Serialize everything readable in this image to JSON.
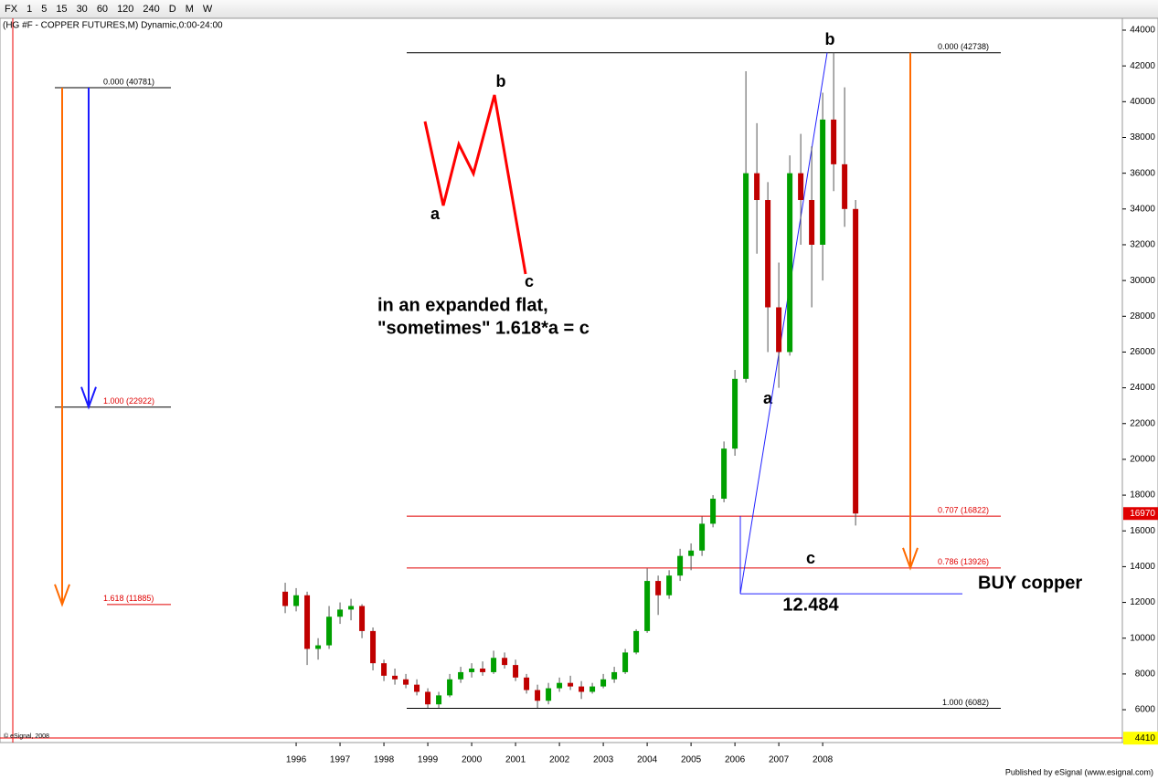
{
  "toolbar": [
    "FX",
    "1",
    "5",
    "15",
    "30",
    "60",
    "120",
    "240",
    "D",
    "M",
    "W"
  ],
  "chart_data": {
    "type": "candlestick",
    "title": "(HG #F - COPPER FUTURES,M) Dynamic,0:00-24:00",
    "copyright": "© eSignal, 2008",
    "footer": "Published by eSignal (www.esignal.com)",
    "note": [
      "in an expanded flat,",
      "\"sometimes\" 1.618*a = c"
    ],
    "buy_note": "BUY copper",
    "sketch_labels": [
      "a",
      "b",
      "c"
    ],
    "wave_labels": [
      "a",
      "b",
      "c"
    ],
    "xlim": [
      1989.25,
      2014.83
    ],
    "xticks": [
      1996,
      1997,
      1998,
      1999,
      2000,
      2001,
      2002,
      2003,
      2004,
      2005,
      2006,
      2007,
      2008
    ],
    "ylim": [
      4215,
      44562
    ],
    "yticks": [
      6000,
      8000,
      10000,
      12000,
      14000,
      16000,
      18000,
      20000,
      22000,
      24000,
      26000,
      28000,
      30000,
      32000,
      34000,
      36000,
      38000,
      40000,
      42000,
      44000
    ],
    "up_color": "#00a000",
    "down_color": "#c00000",
    "x": [
      1995.75,
      1996.0,
      1996.25,
      1996.5,
      1996.75,
      1997.0,
      1997.25,
      1997.5,
      1997.75,
      1998.0,
      1998.25,
      1998.5,
      1998.75,
      1999.0,
      1999.25,
      1999.5,
      1999.75,
      2000.0,
      2000.25,
      2000.5,
      2000.75,
      2001.0,
      2001.25,
      2001.5,
      2001.75,
      2002.0,
      2002.25,
      2002.5,
      2002.75,
      2003.0,
      2003.25,
      2003.5,
      2003.75,
      2004.0,
      2004.25,
      2004.5,
      2004.75,
      2005.0,
      2005.25,
      2005.5,
      2005.75,
      2006.0,
      2006.25,
      2006.5,
      2006.75,
      2007.0,
      2007.25,
      2007.5,
      2007.75,
      2008.0,
      2008.25,
      2008.5,
      2008.75
    ],
    "open": [
      12600,
      11800,
      12400,
      9400,
      9600,
      11200,
      11600,
      11800,
      10400,
      8600,
      7900,
      7700,
      7400,
      7000,
      6300,
      6800,
      7700,
      8100,
      8300,
      8100,
      8900,
      8500,
      7800,
      7100,
      6500,
      7200,
      7500,
      7300,
      7000,
      7300,
      7700,
      8100,
      9200,
      10400,
      13200,
      12400,
      13500,
      14600,
      14900,
      16400,
      17800,
      20600,
      24500,
      36000,
      34500,
      28500,
      26000,
      36000,
      34500,
      32000,
      39000,
      36500,
      34000
    ],
    "high": [
      13100,
      12800,
      12600,
      10000,
      11800,
      12000,
      12200,
      11900,
      10600,
      8800,
      8300,
      8000,
      7700,
      7200,
      7000,
      8000,
      8400,
      8600,
      8700,
      9300,
      9200,
      8800,
      8000,
      7400,
      7500,
      7800,
      7900,
      7600,
      7500,
      8000,
      8400,
      9400,
      10500,
      13900,
      13500,
      13800,
      15000,
      15300,
      16800,
      18000,
      21000,
      25000,
      41700,
      38800,
      35500,
      31000,
      37000,
      38200,
      37500,
      40500,
      42738,
      40800,
      34500
    ],
    "low": [
      11400,
      11500,
      8500,
      8800,
      9400,
      10800,
      11000,
      10000,
      8200,
      7600,
      7400,
      7200,
      6800,
      6100,
      6100,
      6700,
      7500,
      7800,
      7900,
      8000,
      8300,
      7600,
      6900,
      6100,
      6300,
      7000,
      7100,
      6600,
      6900,
      7200,
      7500,
      8000,
      9100,
      10300,
      11300,
      12200,
      13200,
      13800,
      14600,
      16200,
      17600,
      20200,
      24300,
      31500,
      26000,
      24000,
      25800,
      32000,
      28500,
      30000,
      35000,
      33000,
      16300
    ],
    "close": [
      11800,
      12400,
      9400,
      9600,
      11200,
      11600,
      11800,
      10400,
      8600,
      7900,
      7700,
      7400,
      7000,
      6300,
      6800,
      7700,
      8100,
      8300,
      8100,
      8900,
      8500,
      7800,
      7100,
      6500,
      7200,
      7500,
      7300,
      7000,
      7300,
      7700,
      8100,
      9200,
      10400,
      13200,
      12400,
      13500,
      14600,
      14900,
      16400,
      17800,
      20600,
      24500,
      36000,
      34500,
      28500,
      26000,
      36000,
      34500,
      32000,
      39000,
      36500,
      34000,
      16970
    ],
    "fib_levels": [
      {
        "label": "0.000 (40781)",
        "value": 40781,
        "color": "#000000",
        "label_color": "#000000"
      },
      {
        "label": "1.000 (22922)",
        "value": 22922,
        "color": "#000000",
        "label_color": "#e00000"
      },
      {
        "label": "1.618 (11885)",
        "value": 11885,
        "color": "#e00000",
        "label_color": "#e00000"
      },
      {
        "label": "0.000 (42738)",
        "value": 42738,
        "color": "#000000",
        "label_color": "#000000"
      },
      {
        "label": "0.707 (16822)",
        "value": 16822,
        "color": "#e00000",
        "label_color": "#e00000"
      },
      {
        "label": "0.786 (13926)",
        "value": 13926,
        "color": "#e00000",
        "label_color": "#e00000"
      },
      {
        "label": "1.000 (6082)",
        "value": 6082,
        "color": "#000000",
        "label_color": "#000000"
      }
    ],
    "target": {
      "value": 12484,
      "label": "12.484"
    },
    "price_flags": [
      {
        "value": 16970,
        "color": "#e00000",
        "text_color": "#ffffff"
      },
      {
        "value": 4410,
        "color": "#ffff00",
        "text_color": "#000000"
      }
    ]
  }
}
